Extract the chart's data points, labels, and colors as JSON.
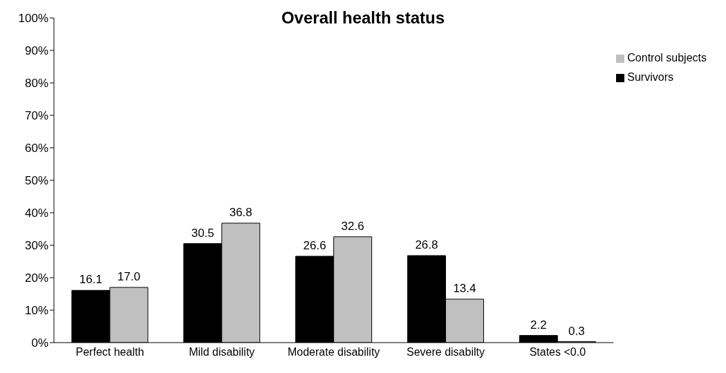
{
  "chart_data": {
    "type": "bar",
    "title": "Overall health status",
    "categories": [
      "Perfect health",
      "Mild disability",
      "Moderate disability",
      "Severe disabilty",
      "States <0.0"
    ],
    "series": [
      {
        "name": "Survivors",
        "color": "#000000",
        "values": [
          16.1,
          30.5,
          26.6,
          26.8,
          2.2
        ],
        "value_labels": [
          "16.1",
          "30.5",
          "26.6",
          "26.8",
          "2.2"
        ]
      },
      {
        "name": "Control subjects",
        "color": "#c0c0c0",
        "values": [
          17.0,
          36.8,
          32.6,
          13.4,
          0.3
        ],
        "value_labels": [
          "17.0",
          "36.8",
          "32.6",
          "13.4",
          "0.3"
        ]
      }
    ],
    "ylim": [
      0,
      100
    ],
    "yticks": [
      {
        "value": 0,
        "label": "0%"
      },
      {
        "value": 10,
        "label": "10%"
      },
      {
        "value": 20,
        "label": "20%"
      },
      {
        "value": 30,
        "label": "30%"
      },
      {
        "value": 40,
        "label": "40%"
      },
      {
        "value": 50,
        "label": "50%"
      },
      {
        "value": 60,
        "label": "60%"
      },
      {
        "value": 70,
        "label": "70%"
      },
      {
        "value": 80,
        "label": "80%"
      },
      {
        "value": 90,
        "label": "90%"
      },
      {
        "value": 100,
        "label": "100%"
      }
    ],
    "legend": "top right",
    "grid": false
  }
}
